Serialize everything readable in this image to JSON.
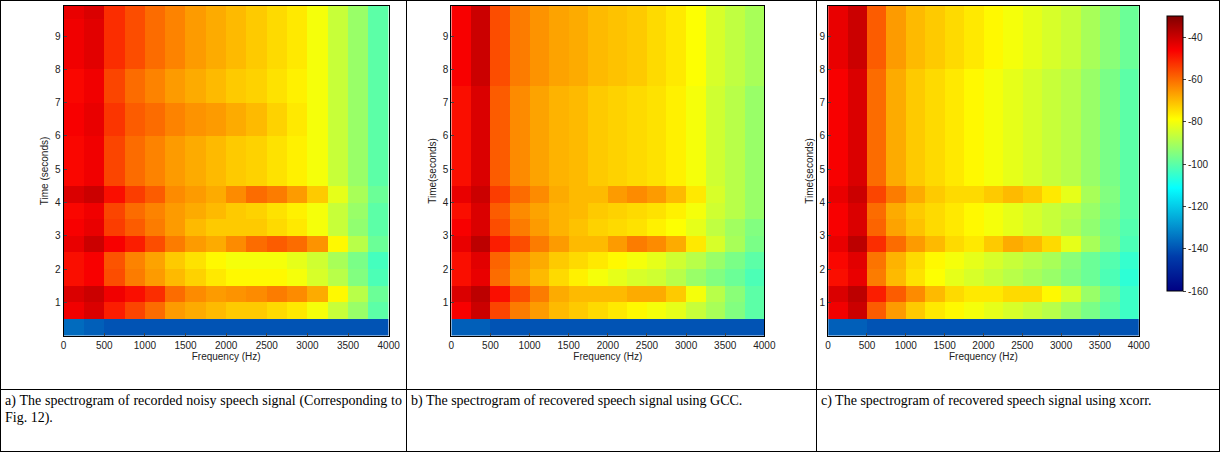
{
  "chart_data": [
    {
      "type": "heatmap",
      "caption": "a) The spectrogram of recorded noisy speech signal (Corresponding to Fig. 12).",
      "xlabel": "Frequency (Hz)",
      "ylabel": "Time (seconds)",
      "xlim": [
        0,
        4000
      ],
      "xticks": [
        0,
        500,
        1000,
        1500,
        2000,
        2500,
        3000,
        3500,
        4000
      ],
      "ylim": [
        0,
        9.9
      ],
      "yticks": [
        1,
        2,
        3,
        4,
        5,
        6,
        7,
        8,
        9
      ],
      "zlim": [
        -160,
        -30
      ],
      "x": [
        125,
        375,
        625,
        875,
        1125,
        1375,
        1625,
        1875,
        2125,
        2375,
        2625,
        2875,
        3125,
        3375,
        3625,
        3875
      ],
      "y": [
        0.25,
        0.75,
        1.25,
        1.75,
        2.25,
        2.75,
        3.25,
        3.75,
        4.25,
        4.75,
        5.25,
        5.75,
        6.25,
        6.75,
        7.25,
        7.75,
        8.25,
        8.75,
        9.25,
        9.75
      ],
      "z": [
        [
          -136,
          -138,
          -140,
          -140,
          -140,
          -140,
          -140,
          -140,
          -140,
          -140,
          -140,
          -140,
          -140,
          -140,
          -140,
          -140
        ],
        [
          -45,
          -42,
          -50,
          -55,
          -60,
          -66,
          -68,
          -70,
          -72,
          -72,
          -74,
          -76,
          -80,
          -86,
          -92,
          -100
        ],
        [
          -42,
          -40,
          -45,
          -48,
          -52,
          -60,
          -64,
          -66,
          -65,
          -64,
          -62,
          -64,
          -68,
          -78,
          -88,
          -98
        ],
        [
          -48,
          -46,
          -56,
          -62,
          -66,
          -70,
          -73,
          -76,
          -78,
          -78,
          -78,
          -80,
          -84,
          -88,
          -95,
          -102
        ],
        [
          -48,
          -46,
          -57,
          -63,
          -67,
          -72,
          -75,
          -78,
          -80,
          -80,
          -80,
          -82,
          -85,
          -90,
          -96,
          -103
        ],
        [
          -44,
          -40,
          -46,
          -50,
          -56,
          -62,
          -66,
          -68,
          -64,
          -60,
          -58,
          -60,
          -65,
          -78,
          -88,
          -98
        ],
        [
          -46,
          -44,
          -54,
          -58,
          -62,
          -66,
          -70,
          -72,
          -72,
          -72,
          -74,
          -76,
          -80,
          -86,
          -93,
          -100
        ],
        [
          -47,
          -45,
          -55,
          -60,
          -63,
          -66,
          -68,
          -70,
          -72,
          -73,
          -75,
          -77,
          -80,
          -86,
          -92,
          -100
        ],
        [
          -42,
          -40,
          -48,
          -54,
          -58,
          -64,
          -66,
          -68,
          -64,
          -60,
          -62,
          -66,
          -72,
          -82,
          -90,
          -98
        ],
        [
          -47,
          -45,
          -55,
          -60,
          -63,
          -66,
          -68,
          -70,
          -72,
          -73,
          -75,
          -77,
          -80,
          -86,
          -92,
          -100
        ],
        [
          -47,
          -45,
          -55,
          -60,
          -63,
          -66,
          -68,
          -70,
          -72,
          -73,
          -75,
          -77,
          -80,
          -86,
          -92,
          -100
        ],
        [
          -47,
          -45,
          -55,
          -60,
          -63,
          -66,
          -68,
          -70,
          -72,
          -73,
          -75,
          -77,
          -80,
          -86,
          -92,
          -100
        ],
        [
          -46,
          -44,
          -53,
          -58,
          -60,
          -63,
          -65,
          -66,
          -68,
          -70,
          -73,
          -76,
          -80,
          -86,
          -92,
          -100
        ],
        [
          -46,
          -44,
          -53,
          -58,
          -60,
          -63,
          -65,
          -66,
          -68,
          -70,
          -73,
          -76,
          -80,
          -86,
          -92,
          -100
        ],
        [
          -47,
          -45,
          -55,
          -60,
          -63,
          -66,
          -68,
          -70,
          -72,
          -73,
          -75,
          -77,
          -80,
          -86,
          -92,
          -100
        ],
        [
          -47,
          -45,
          -55,
          -60,
          -63,
          -66,
          -68,
          -70,
          -72,
          -73,
          -75,
          -77,
          -80,
          -86,
          -92,
          -100
        ],
        [
          -45,
          -43,
          -52,
          -56,
          -60,
          -63,
          -66,
          -68,
          -70,
          -72,
          -74,
          -76,
          -80,
          -86,
          -92,
          -100
        ],
        [
          -45,
          -43,
          -52,
          -56,
          -60,
          -63,
          -66,
          -68,
          -70,
          -72,
          -74,
          -76,
          -80,
          -86,
          -92,
          -100
        ],
        [
          -45,
          -43,
          -52,
          -56,
          -60,
          -63,
          -66,
          -68,
          -70,
          -72,
          -74,
          -76,
          -80,
          -86,
          -92,
          -100
        ],
        [
          -44,
          -42,
          -52,
          -56,
          -60,
          -63,
          -66,
          -68,
          -70,
          -72,
          -74,
          -76,
          -80,
          -86,
          -92,
          -100
        ]
      ]
    },
    {
      "type": "heatmap",
      "caption": "b) The spectrogram of recovered speech signal using GCC.",
      "xlabel": "Frequency (Hz)",
      "ylabel": "Time(seconds)",
      "xlim": [
        0,
        4000
      ],
      "xticks": [
        0,
        500,
        1000,
        1500,
        2000,
        2500,
        3000,
        3500,
        4000
      ],
      "ylim": [
        0,
        9.9
      ],
      "yticks": [
        1,
        2,
        3,
        4,
        5,
        6,
        7,
        8,
        9
      ],
      "zlim": [
        -160,
        -30
      ],
      "x": [
        125,
        375,
        625,
        875,
        1125,
        1375,
        1625,
        1875,
        2125,
        2375,
        2625,
        2875,
        3125,
        3375,
        3625,
        3875
      ],
      "y": [
        0.25,
        0.75,
        1.25,
        1.75,
        2.25,
        2.75,
        3.25,
        3.75,
        4.25,
        4.75,
        5.25,
        5.75,
        6.25,
        6.75,
        7.25,
        7.75,
        8.25,
        8.75,
        9.25,
        9.75
      ],
      "z": [
        [
          -138,
          -138,
          -140,
          -140,
          -140,
          -140,
          -140,
          -140,
          -140,
          -140,
          -140,
          -140,
          -140,
          -140,
          -140,
          -140
        ],
        [
          -46,
          -40,
          -55,
          -62,
          -66,
          -70,
          -72,
          -74,
          -76,
          -78,
          -80,
          -82,
          -86,
          -90,
          -95,
          -100
        ],
        [
          -42,
          -38,
          -48,
          -56,
          -62,
          -68,
          -70,
          -70,
          -70,
          -68,
          -68,
          -72,
          -80,
          -88,
          -94,
          -100
        ],
        [
          -48,
          -44,
          -60,
          -66,
          -70,
          -74,
          -77,
          -80,
          -82,
          -84,
          -85,
          -88,
          -92,
          -95,
          -98,
          -102
        ],
        [
          -48,
          -43,
          -59,
          -65,
          -68,
          -72,
          -74,
          -76,
          -78,
          -80,
          -82,
          -85,
          -88,
          -92,
          -96,
          -100
        ],
        [
          -44,
          -38,
          -50,
          -56,
          -62,
          -66,
          -70,
          -70,
          -66,
          -62,
          -64,
          -68,
          -76,
          -84,
          -90,
          -96
        ],
        [
          -46,
          -42,
          -56,
          -62,
          -66,
          -69,
          -71,
          -73,
          -74,
          -75,
          -77,
          -79,
          -82,
          -87,
          -91,
          -95
        ],
        [
          -48,
          -42,
          -58,
          -64,
          -67,
          -69,
          -70,
          -72,
          -73,
          -74,
          -75,
          -77,
          -80,
          -85,
          -88,
          -92
        ],
        [
          -44,
          -40,
          -54,
          -60,
          -64,
          -68,
          -70,
          -70,
          -66,
          -64,
          -66,
          -70,
          -76,
          -84,
          -88,
          -92
        ],
        [
          -48,
          -42,
          -58,
          -64,
          -67,
          -69,
          -70,
          -72,
          -73,
          -74,
          -75,
          -77,
          -80,
          -85,
          -88,
          -92
        ],
        [
          -48,
          -42,
          -58,
          -64,
          -67,
          -69,
          -70,
          -72,
          -73,
          -74,
          -75,
          -77,
          -80,
          -85,
          -88,
          -92
        ],
        [
          -48,
          -42,
          -58,
          -64,
          -67,
          -69,
          -70,
          -72,
          -73,
          -74,
          -75,
          -77,
          -80,
          -85,
          -88,
          -92
        ],
        [
          -48,
          -42,
          -58,
          -64,
          -67,
          -69,
          -70,
          -72,
          -73,
          -74,
          -75,
          -77,
          -80,
          -85,
          -88,
          -92
        ],
        [
          -48,
          -42,
          -58,
          -64,
          -67,
          -69,
          -70,
          -72,
          -73,
          -74,
          -75,
          -77,
          -80,
          -85,
          -88,
          -92
        ],
        [
          -48,
          -42,
          -58,
          -64,
          -67,
          -69,
          -70,
          -72,
          -73,
          -74,
          -75,
          -77,
          -80,
          -85,
          -88,
          -92
        ],
        [
          -46,
          -40,
          -56,
          -62,
          -65,
          -67,
          -68,
          -70,
          -71,
          -72,
          -74,
          -76,
          -79,
          -84,
          -87,
          -90
        ],
        [
          -46,
          -40,
          -56,
          -62,
          -65,
          -67,
          -68,
          -70,
          -71,
          -72,
          -74,
          -76,
          -79,
          -84,
          -87,
          -90
        ],
        [
          -46,
          -40,
          -56,
          -62,
          -65,
          -67,
          -68,
          -70,
          -71,
          -72,
          -74,
          -76,
          -79,
          -84,
          -87,
          -90
        ],
        [
          -46,
          -40,
          -56,
          -62,
          -65,
          -67,
          -68,
          -70,
          -71,
          -72,
          -74,
          -76,
          -79,
          -84,
          -87,
          -90
        ],
        [
          -46,
          -40,
          -56,
          -62,
          -65,
          -67,
          -68,
          -70,
          -71,
          -72,
          -74,
          -76,
          -79,
          -84,
          -87,
          -90
        ]
      ]
    },
    {
      "type": "heatmap",
      "caption": "c) The spectrogram of recovered speech signal using xcorr.",
      "xlabel": "Frequency (Hz)",
      "ylabel": "Time(seconds)",
      "xlim": [
        0,
        4000
      ],
      "xticks": [
        0,
        500,
        1000,
        1500,
        2000,
        2500,
        3000,
        3500,
        4000
      ],
      "ylim": [
        0,
        9.9
      ],
      "yticks": [
        1,
        2,
        3,
        4,
        5,
        6,
        7,
        8,
        9
      ],
      "zlim": [
        -160,
        -30
      ],
      "zticks": [
        -40,
        -60,
        -80,
        -100,
        -120,
        -140,
        -160
      ],
      "x": [
        125,
        375,
        625,
        875,
        1125,
        1375,
        1625,
        1875,
        2125,
        2375,
        2625,
        2875,
        3125,
        3375,
        3625,
        3875
      ],
      "y": [
        0.25,
        0.75,
        1.25,
        1.75,
        2.25,
        2.75,
        3.25,
        3.75,
        4.25,
        4.75,
        5.25,
        5.75,
        6.25,
        6.75,
        7.25,
        7.75,
        8.25,
        8.75,
        9.25,
        9.75
      ],
      "z": [
        [
          -138,
          -138,
          -140,
          -140,
          -140,
          -140,
          -140,
          -140,
          -140,
          -140,
          -140,
          -140,
          -140,
          -140,
          -140,
          -140
        ],
        [
          -45,
          -40,
          -58,
          -66,
          -72,
          -76,
          -78,
          -80,
          -82,
          -84,
          -86,
          -88,
          -92,
          -96,
          -100,
          -104
        ],
        [
          -42,
          -38,
          -50,
          -58,
          -64,
          -70,
          -74,
          -76,
          -76,
          -74,
          -74,
          -78,
          -84,
          -92,
          -98,
          -104
        ],
        [
          -48,
          -44,
          -62,
          -70,
          -75,
          -79,
          -82,
          -84,
          -86,
          -88,
          -90,
          -92,
          -95,
          -98,
          -102,
          -106
        ],
        [
          -47,
          -43,
          -61,
          -69,
          -74,
          -78,
          -80,
          -82,
          -84,
          -86,
          -88,
          -90,
          -94,
          -98,
          -101,
          -105
        ],
        [
          -44,
          -38,
          -52,
          -60,
          -66,
          -70,
          -74,
          -76,
          -72,
          -68,
          -70,
          -74,
          -82,
          -90,
          -96,
          -102
        ],
        [
          -46,
          -42,
          -59,
          -67,
          -71,
          -74,
          -76,
          -78,
          -80,
          -82,
          -84,
          -86,
          -89,
          -93,
          -97,
          -101
        ],
        [
          -46,
          -42,
          -60,
          -68,
          -72,
          -74,
          -76,
          -78,
          -80,
          -82,
          -84,
          -86,
          -88,
          -92,
          -96,
          -100
        ],
        [
          -44,
          -40,
          -55,
          -62,
          -68,
          -72,
          -74,
          -74,
          -72,
          -70,
          -72,
          -76,
          -82,
          -90,
          -95,
          -100
        ],
        [
          -46,
          -42,
          -60,
          -68,
          -72,
          -74,
          -76,
          -78,
          -80,
          -82,
          -84,
          -86,
          -88,
          -92,
          -96,
          -100
        ],
        [
          -46,
          -42,
          -60,
          -68,
          -72,
          -74,
          -76,
          -78,
          -80,
          -82,
          -84,
          -86,
          -88,
          -92,
          -96,
          -100
        ],
        [
          -46,
          -42,
          -60,
          -68,
          -72,
          -74,
          -76,
          -78,
          -80,
          -82,
          -84,
          -86,
          -88,
          -92,
          -96,
          -100
        ],
        [
          -46,
          -42,
          -60,
          -68,
          -72,
          -74,
          -76,
          -78,
          -80,
          -82,
          -84,
          -86,
          -88,
          -92,
          -96,
          -100
        ],
        [
          -46,
          -42,
          -60,
          -68,
          -72,
          -74,
          -76,
          -78,
          -80,
          -82,
          -84,
          -86,
          -88,
          -92,
          -96,
          -100
        ],
        [
          -46,
          -42,
          -60,
          -68,
          -72,
          -74,
          -76,
          -78,
          -80,
          -82,
          -84,
          -86,
          -88,
          -92,
          -96,
          -100
        ],
        [
          -46,
          -42,
          -60,
          -68,
          -72,
          -74,
          -76,
          -78,
          -80,
          -82,
          -84,
          -86,
          -88,
          -92,
          -96,
          -100
        ],
        [
          -44,
          -40,
          -58,
          -66,
          -70,
          -72,
          -74,
          -76,
          -78,
          -80,
          -82,
          -84,
          -86,
          -90,
          -94,
          -98
        ],
        [
          -44,
          -40,
          -58,
          -66,
          -70,
          -72,
          -74,
          -76,
          -78,
          -80,
          -82,
          -84,
          -86,
          -90,
          -94,
          -98
        ],
        [
          -44,
          -40,
          -58,
          -66,
          -70,
          -72,
          -74,
          -76,
          -78,
          -80,
          -82,
          -84,
          -86,
          -90,
          -94,
          -98
        ],
        [
          -44,
          -40,
          -58,
          -66,
          -70,
          -72,
          -74,
          -76,
          -78,
          -80,
          -82,
          -84,
          -86,
          -90,
          -94,
          -98
        ]
      ]
    }
  ]
}
